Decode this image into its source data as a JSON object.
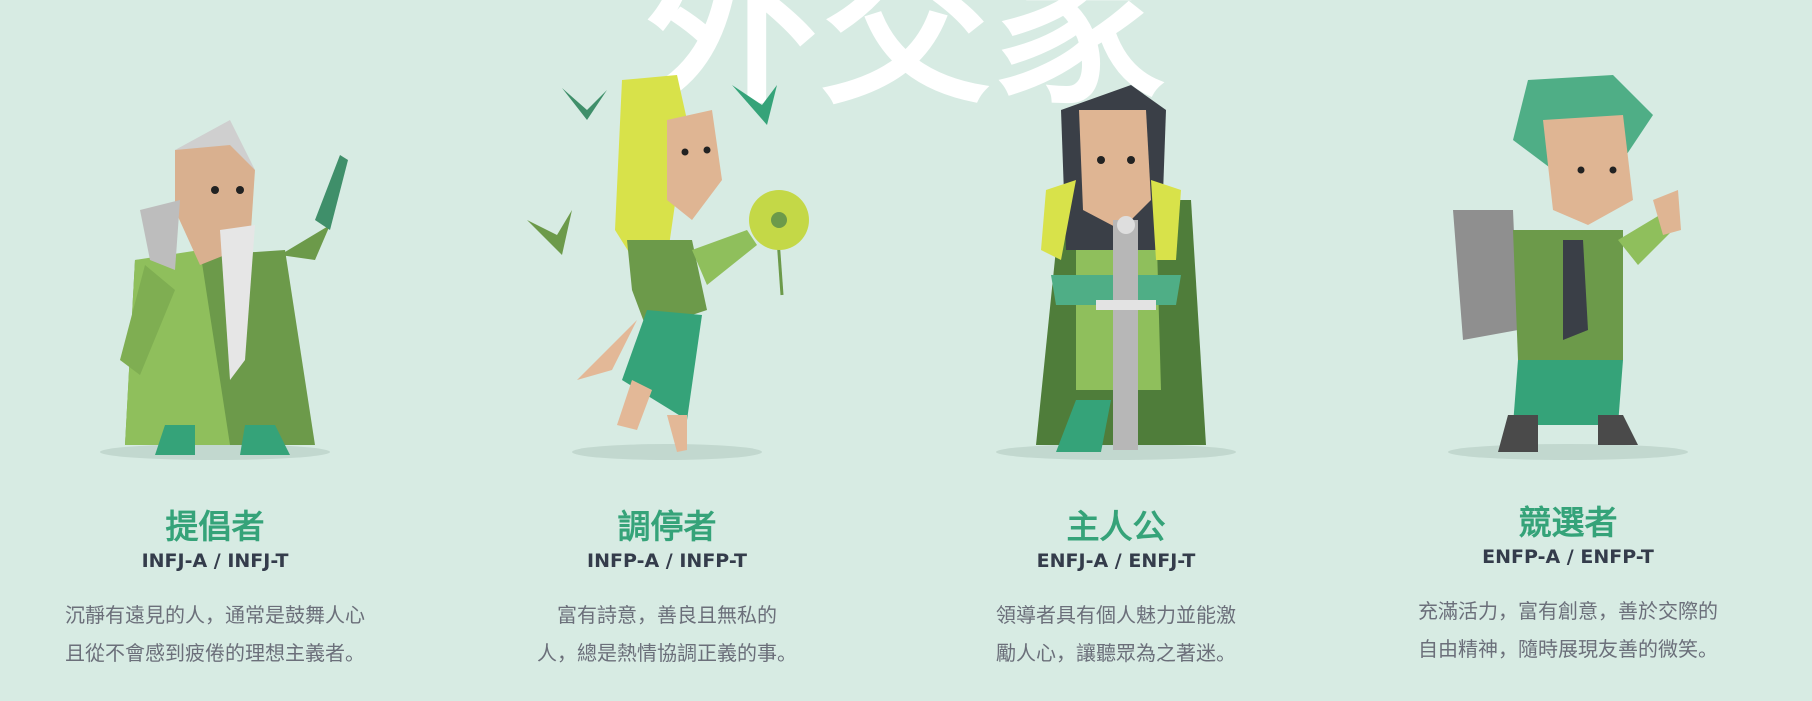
{
  "page": {
    "background_title": "外交家"
  },
  "colors": {
    "accent": "#35a379",
    "background": "#d7ebe3",
    "code_text": "#343c4b",
    "desc_text": "#6b6f7a"
  },
  "cards": [
    {
      "name": "提倡者",
      "code": "INFJ-A / INFJ-T",
      "desc_line1": "沉靜有遠見的人，通常是鼓舞人心",
      "desc_line2": "且從不會感到疲倦的理想主義者。",
      "icon": "advocate-illustration"
    },
    {
      "name": "調停者",
      "code": "INFP-A / INFP-T",
      "desc_line1": "富有詩意，善良且無私的",
      "desc_line2": "人，總是熱情協調正義的事。",
      "icon": "mediator-illustration"
    },
    {
      "name": "主人公",
      "code": "ENFJ-A / ENFJ-T",
      "desc_line1": "領導者具有個人魅力並能激",
      "desc_line2": "勵人心，讓聽眾為之著迷。",
      "icon": "protagonist-illustration"
    },
    {
      "name": "競選者",
      "code": "ENFP-A / ENFP-T",
      "desc_line1": "充滿活力，富有創意，善於交際的",
      "desc_line2": "自由精神，隨時展現友善的微笑。",
      "icon": "campaigner-illustration"
    }
  ]
}
